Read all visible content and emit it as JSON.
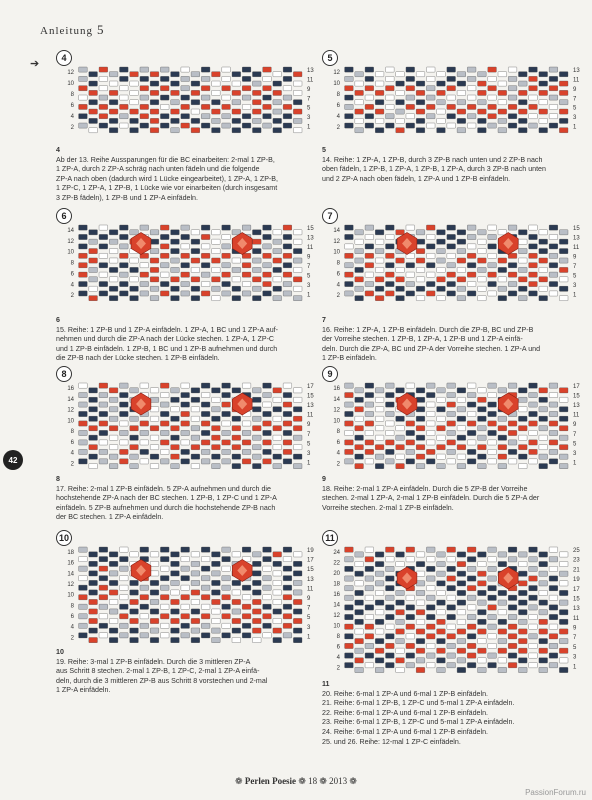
{
  "header": {
    "title": "Anleitung",
    "number": "5"
  },
  "page_number": "42",
  "footer": {
    "text": "Perlen Poesie",
    "issue": "18",
    "year": "2013"
  },
  "watermark": "PassionForum.ru",
  "colors": {
    "navy": "#2b3a52",
    "red": "#d9422b",
    "grey": "#b9bec6",
    "white": "#ffffff"
  },
  "panels": [
    {
      "id": "4",
      "rows_left": [
        "12",
        "10",
        "8",
        "6",
        "4",
        "2"
      ],
      "rows_right": [
        "13",
        "11",
        "9",
        "7",
        "5",
        "3",
        "1"
      ],
      "crystals": 0,
      "label": "4",
      "lines": [
        "Ab der 13. Reihe Aussparungen für die BC einarbeiten: 2-mal 1 ZP-B,",
        "1 ZP-A, durch 2 ZP-A schräg nach unten fädeln und die folgende",
        "ZP-A nach oben (dadurch wird 1 Lücke eingearbeitet), 1 ZP-A, 1 ZP-B,",
        "1 ZP-C, 1 ZP-A, 1 ZP-B, 1 Lücke wie vor einarbeiten (durch insgesamt",
        "3 ZP-B fädeln), 1 ZP-B und 1 ZP-A einfädeln."
      ]
    },
    {
      "id": "5",
      "rows_left": [
        "12",
        "10",
        "8",
        "6",
        "4",
        "2"
      ],
      "rows_right": [
        "13",
        "11",
        "9",
        "7",
        "5",
        "3",
        "1"
      ],
      "crystals": 0,
      "label": "5",
      "lines": [
        "14. Reihe: 1 ZP-A, 1 ZP-B, durch 3 ZP-B nach unten und 2 ZP-B nach",
        "oben fädeln, 1 ZP-B, 1 ZP-A, 1 ZP-B, 1 ZP-A, durch 3 ZP-B nach unten",
        "und 2 ZP-A nach oben fädeln, 1 ZP-A und 1 ZP-B einfädeln."
      ]
    },
    {
      "id": "6",
      "rows_left": [
        "14",
        "12",
        "10",
        "8",
        "6",
        "4",
        "2"
      ],
      "rows_right": [
        "15",
        "13",
        "11",
        "9",
        "7",
        "5",
        "3",
        "1"
      ],
      "crystals": 2,
      "label": "6",
      "lines": [
        "15. Reihe: 1 ZP-B und 1 ZP-A einfädeln. 1 ZP-A, 1 BC und 1 ZP-A auf-",
        "nehmen und durch die ZP-A nach der Lücke stechen. 1 ZP-A, 1 ZP-C",
        "und 1 ZP-B einfädeln. 1 ZP-B, 1 BC und 1 ZP-B aufnehmen und durch",
        "die ZP-B nach der Lücke stechen. 1 ZP-B einfädeln."
      ]
    },
    {
      "id": "7",
      "rows_left": [
        "14",
        "12",
        "10",
        "8",
        "6",
        "4",
        "2"
      ],
      "rows_right": [
        "15",
        "13",
        "11",
        "9",
        "7",
        "5",
        "3",
        "1"
      ],
      "crystals": 2,
      "label": "7",
      "lines": [
        "16. Reihe: 1 ZP-A, 1 ZP-B einfädeln. Durch die ZP-B, BC und ZP-B",
        "der Vorreihe stechen. 1 ZP-B, 1 ZP-A, 1 ZP-B und 1 ZP-A einfä-",
        "deln. Durch die ZP-A, BC und ZP-A der Vorreihe stechen. 1 ZP-A und",
        "1 ZP-B einfädeln."
      ]
    },
    {
      "id": "8",
      "rows_left": [
        "16",
        "14",
        "12",
        "10",
        "8",
        "6",
        "4",
        "2"
      ],
      "rows_right": [
        "17",
        "15",
        "13",
        "11",
        "9",
        "7",
        "5",
        "3",
        "1"
      ],
      "crystals": 2,
      "label": "8",
      "lines": [
        "17. Reihe: 2-mal 1 ZP-B einfädeln. 5 ZP-A aufnehmen und durch die",
        "hochstehende ZP-A nach der BC stechen. 1 ZP-B, 1 ZP-C und 1 ZP-A",
        "einfädeln. 5 ZP-B aufnehmen und durch die hochstehende ZP-B nach",
        "der BC stechen. 1 ZP-A einfädeln."
      ]
    },
    {
      "id": "9",
      "rows_left": [
        "16",
        "14",
        "12",
        "10",
        "8",
        "6",
        "4",
        "2"
      ],
      "rows_right": [
        "17",
        "15",
        "13",
        "11",
        "9",
        "7",
        "5",
        "3",
        "1"
      ],
      "crystals": 2,
      "label": "9",
      "lines": [
        "18. Reihe: 2-mal 1 ZP-A einfädeln. Durch die 5 ZP-B der Vorreihe",
        "stechen. 2-mal 1 ZP-A, 2-mal 1 ZP-B einfädeln. Durch die 5 ZP-A der",
        "Vorreihe stechen. 2-mal 1 ZP-B einfädeln."
      ]
    },
    {
      "id": "10",
      "rows_left": [
        "18",
        "16",
        "14",
        "12",
        "10",
        "8",
        "6",
        "4",
        "2"
      ],
      "rows_right": [
        "19",
        "17",
        "15",
        "13",
        "11",
        "9",
        "7",
        "5",
        "3",
        "1"
      ],
      "crystals": 2,
      "label": "10",
      "lines": [
        "19. Reihe: 3-mal 1 ZP-B einfädeln. Durch die 3 mittleren ZP-A",
        "aus Schritt 8 stechen. 2-mal 1 ZP-B, 1 ZP-C, 2-mal 1 ZP-A einfä-",
        "deln, durch die 3 mittleren ZP-B aus Schritt 8 vorstechen und 2-mal",
        "1 ZP-A einfädeln."
      ]
    },
    {
      "id": "11",
      "rows_left": [
        "24",
        "22",
        "20",
        "18",
        "16",
        "14",
        "12",
        "10",
        "8",
        "6",
        "4",
        "2"
      ],
      "rows_right": [
        "25",
        "23",
        "21",
        "19",
        "17",
        "15",
        "13",
        "11",
        "9",
        "7",
        "5",
        "3",
        "1"
      ],
      "crystals": 2,
      "label": "11",
      "lines": [
        "20. Reihe: 6-mal 1 ZP-A und 6-mal 1 ZP-B einfädeln.",
        "21. Reihe: 6-mal 1 ZP-B, 1 ZP-C und 5-mal 1 ZP-A einfädeln.",
        "22. Reihe: 6-mal 1 ZP-A und 6-mal 1 ZP-B einfädeln.",
        "23. Reihe: 6-mal 1 ZP-B, 1 ZP-C und 5-mal 1 ZP-A einfädeln.",
        "24. Reihe: 6-mal 1 ZP-A und 6-mal 1 ZP-B einfädeln.",
        "25. und 26. Reihe: 12-mal 1 ZP-C einfädeln."
      ]
    }
  ]
}
